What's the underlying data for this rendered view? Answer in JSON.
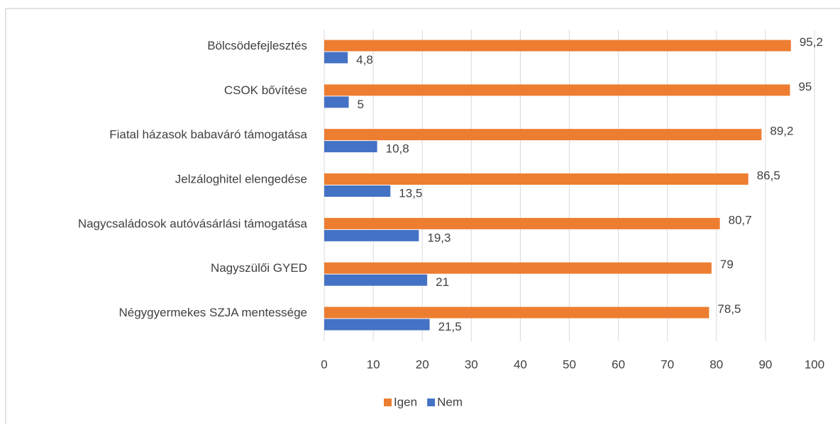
{
  "chart_data": {
    "type": "hbar",
    "categories": [
      "Bölcsödefejlesztés",
      "CSOK bővítése",
      "Fiatal házasok babaváró támogatása",
      "Jelzáloghitel elengedése",
      "Nagycsaládosok autóvásárlási támogatása",
      "Nagyszülői GYED",
      "Négygyermekes SZJA mentessége"
    ],
    "series": [
      {
        "name": "Igen",
        "color": "#ed7d31",
        "values": [
          95.2,
          95,
          89.2,
          86.5,
          80.7,
          79,
          78.5
        ],
        "value_labels": [
          "95,2",
          "95",
          "89,2",
          "86,5",
          "80,7",
          "79",
          "78,5"
        ]
      },
      {
        "name": "Nem",
        "color": "#4472c4",
        "values": [
          4.8,
          5,
          10.8,
          13.5,
          19.3,
          21,
          21.5
        ],
        "value_labels": [
          "4,8",
          "5",
          "10,8",
          "13,5",
          "19,3",
          "21",
          "21,5"
        ]
      }
    ],
    "xlim": [
      0,
      100
    ],
    "xticks": [
      0,
      10,
      20,
      30,
      40,
      50,
      60,
      70,
      80,
      90,
      100
    ],
    "grid": true,
    "legend": "bottom"
  }
}
